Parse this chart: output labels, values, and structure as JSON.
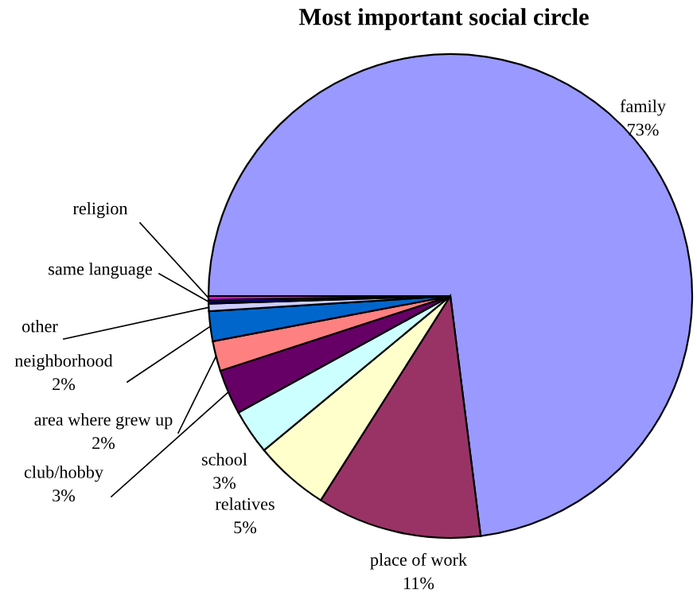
{
  "chart_data": {
    "type": "pie",
    "title": "Most important social circle",
    "categories": [
      "family",
      "place of work",
      "relatives",
      "school",
      "club/hobby",
      "area where grew up",
      "neighborhood",
      "other",
      "same language",
      "religion"
    ],
    "values": [
      73,
      11,
      5,
      3,
      3,
      2,
      2,
      0.5,
      0.25,
      0.25
    ],
    "value_labels": [
      "73%",
      "11%",
      "5%",
      "3%",
      "3%",
      "2%",
      "2%",
      null,
      null,
      null
    ],
    "colors": [
      "#9999ff",
      "#993366",
      "#ffffcc",
      "#ccffff",
      "#660066",
      "#ff8080",
      "#0066cc",
      "#ccccff",
      "#000080",
      "#ff00ff"
    ],
    "legend": false
  }
}
